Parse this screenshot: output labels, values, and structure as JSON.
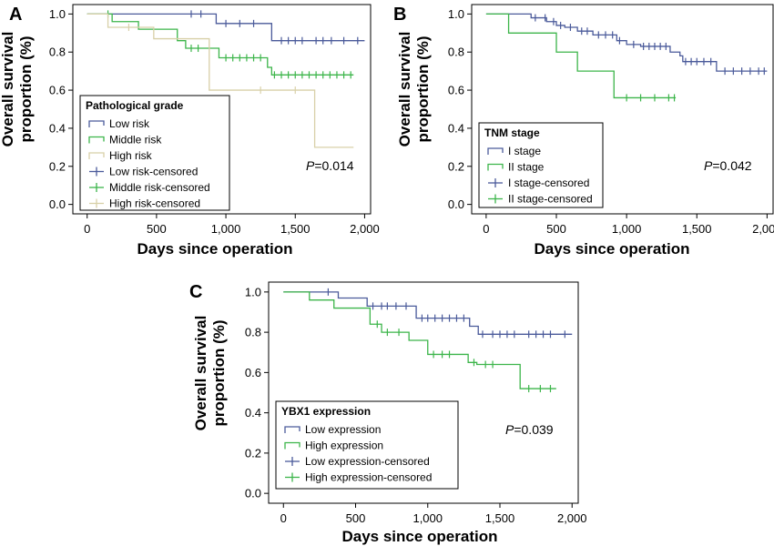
{
  "colors": {
    "low": "#4a5a9a",
    "middle": "#3cb54a",
    "high": "#d8d0a8",
    "frame": "#000000"
  },
  "chart_data": [
    {
      "id": "A",
      "type": "line",
      "panel_label": "A",
      "xlabel": "Days since operation",
      "ylabel_lines": [
        "Overall survival",
        "proportion (%)"
      ],
      "xlim": [
        -90,
        2030
      ],
      "ylim": [
        -0.04,
        1.04
      ],
      "xticks": [
        0,
        500,
        1000,
        1500,
        2000
      ],
      "xtick_labels": [
        "0",
        "500",
        "1,000",
        "1,500",
        "2,000"
      ],
      "yticks": [
        0,
        0.2,
        0.4,
        0.6,
        0.8,
        1.0
      ],
      "ytick_labels": [
        "0.0",
        "0.2",
        "0.4",
        "0.6",
        "0.8",
        "1.0"
      ],
      "p_value": "=0.014",
      "legend": {
        "title": "Pathological grade",
        "placement": "bottom-left",
        "items": [
          {
            "label": "Low risk",
            "kind": "step",
            "color_key": "low"
          },
          {
            "label": "Middle risk",
            "kind": "step",
            "color_key": "middle"
          },
          {
            "label": "High risk",
            "kind": "step",
            "color_key": "high"
          },
          {
            "label": "Low risk-censored",
            "kind": "cross",
            "color_key": "low"
          },
          {
            "label": "Middle risk-censored",
            "kind": "cross",
            "color_key": "middle"
          },
          {
            "label": "High risk-censored",
            "kind": "cross",
            "color_key": "high"
          }
        ]
      },
      "series": [
        {
          "name": "Low risk",
          "color_key": "low",
          "steps": [
            [
              0,
              1.0
            ],
            [
              930,
              0.95
            ],
            [
              1330,
              0.86
            ],
            [
              2000,
              0.86
            ]
          ],
          "censored": [
            [
              750,
              1.0
            ],
            [
              820,
              1.0
            ],
            [
              1000,
              0.95
            ],
            [
              1100,
              0.95
            ],
            [
              1200,
              0.95
            ],
            [
              1400,
              0.86
            ],
            [
              1450,
              0.86
            ],
            [
              1500,
              0.86
            ],
            [
              1550,
              0.86
            ],
            [
              1650,
              0.86
            ],
            [
              1700,
              0.86
            ],
            [
              1760,
              0.86
            ],
            [
              1850,
              0.86
            ],
            [
              1950,
              0.86
            ]
          ]
        },
        {
          "name": "Middle risk",
          "color_key": "middle",
          "steps": [
            [
              0,
              1.0
            ],
            [
              180,
              0.96
            ],
            [
              370,
              0.92
            ],
            [
              650,
              0.86
            ],
            [
              710,
              0.82
            ],
            [
              950,
              0.77
            ],
            [
              1300,
              0.72
            ],
            [
              1330,
              0.68
            ],
            [
              1920,
              0.68
            ]
          ],
          "censored": [
            [
              150,
              1.0
            ],
            [
              750,
              0.82
            ],
            [
              800,
              0.82
            ],
            [
              1000,
              0.77
            ],
            [
              1050,
              0.77
            ],
            [
              1100,
              0.77
            ],
            [
              1150,
              0.77
            ],
            [
              1200,
              0.77
            ],
            [
              1250,
              0.77
            ],
            [
              1350,
              0.68
            ],
            [
              1400,
              0.68
            ],
            [
              1450,
              0.68
            ],
            [
              1500,
              0.68
            ],
            [
              1550,
              0.68
            ],
            [
              1600,
              0.68
            ],
            [
              1650,
              0.68
            ],
            [
              1700,
              0.68
            ],
            [
              1750,
              0.68
            ],
            [
              1800,
              0.68
            ],
            [
              1850,
              0.68
            ],
            [
              1900,
              0.68
            ]
          ]
        },
        {
          "name": "High risk",
          "color_key": "high",
          "steps": [
            [
              0,
              1.0
            ],
            [
              150,
              0.93
            ],
            [
              480,
              0.87
            ],
            [
              880,
              0.6
            ],
            [
              1640,
              0.3
            ],
            [
              1920,
              0.3
            ]
          ],
          "censored": [
            [
              300,
              0.93
            ],
            [
              1250,
              0.6
            ],
            [
              1500,
              0.6
            ]
          ]
        }
      ]
    },
    {
      "id": "B",
      "type": "line",
      "panel_label": "B",
      "xlabel": "Days since operation",
      "ylabel_lines": [
        "Overall survival",
        "proportion (%)"
      ],
      "xlim": [
        -90,
        2030
      ],
      "ylim": [
        -0.04,
        1.04
      ],
      "xticks": [
        0,
        500,
        1000,
        1500,
        2000
      ],
      "xtick_labels": [
        "0",
        "500",
        "1,000",
        "1,500",
        "2,000"
      ],
      "yticks": [
        0,
        0.2,
        0.4,
        0.6,
        0.8,
        1.0
      ],
      "ytick_labels": [
        "0.0",
        "0.2",
        "0.4",
        "0.6",
        "0.8",
        "1.0"
      ],
      "p_value": "=0.042",
      "legend": {
        "title": "TNM stage",
        "placement": "bottom-left",
        "items": [
          {
            "label": "I stage",
            "kind": "step",
            "color_key": "low"
          },
          {
            "label": "II stage",
            "kind": "step",
            "color_key": "middle"
          },
          {
            "label": "I stage-censored",
            "kind": "cross",
            "color_key": "low"
          },
          {
            "label": "II stage-censored",
            "kind": "cross",
            "color_key": "middle"
          }
        ]
      },
      "series": [
        {
          "name": "I stage",
          "color_key": "low",
          "steps": [
            [
              0,
              1.0
            ],
            [
              320,
              0.98
            ],
            [
              430,
              0.96
            ],
            [
              500,
              0.94
            ],
            [
              560,
              0.93
            ],
            [
              650,
              0.91
            ],
            [
              760,
              0.89
            ],
            [
              930,
              0.86
            ],
            [
              1000,
              0.84
            ],
            [
              1100,
              0.83
            ],
            [
              1310,
              0.8
            ],
            [
              1380,
              0.78
            ],
            [
              1400,
              0.75
            ],
            [
              1640,
              0.7
            ],
            [
              2000,
              0.7
            ]
          ],
          "censored": [
            [
              350,
              0.98
            ],
            [
              420,
              0.98
            ],
            [
              480,
              0.96
            ],
            [
              530,
              0.94
            ],
            [
              600,
              0.93
            ],
            [
              680,
              0.91
            ],
            [
              720,
              0.91
            ],
            [
              800,
              0.89
            ],
            [
              850,
              0.89
            ],
            [
              900,
              0.89
            ],
            [
              950,
              0.86
            ],
            [
              1050,
              0.84
            ],
            [
              1120,
              0.83
            ],
            [
              1160,
              0.83
            ],
            [
              1200,
              0.83
            ],
            [
              1240,
              0.83
            ],
            [
              1280,
              0.83
            ],
            [
              1420,
              0.75
            ],
            [
              1460,
              0.75
            ],
            [
              1500,
              0.75
            ],
            [
              1550,
              0.75
            ],
            [
              1600,
              0.75
            ],
            [
              1700,
              0.7
            ],
            [
              1760,
              0.7
            ],
            [
              1820,
              0.7
            ],
            [
              1880,
              0.7
            ],
            [
              1940,
              0.7
            ],
            [
              1980,
              0.7
            ]
          ]
        },
        {
          "name": "II stage",
          "color_key": "middle",
          "steps": [
            [
              0,
              1.0
            ],
            [
              160,
              0.9
            ],
            [
              500,
              0.8
            ],
            [
              650,
              0.7
            ],
            [
              910,
              0.56
            ],
            [
              1350,
              0.56
            ]
          ],
          "censored": [
            [
              1000,
              0.56
            ],
            [
              1100,
              0.56
            ],
            [
              1200,
              0.56
            ],
            [
              1300,
              0.56
            ],
            [
              1340,
              0.56
            ]
          ]
        }
      ]
    },
    {
      "id": "C",
      "type": "line",
      "panel_label": "C",
      "xlabel": "Days since operation",
      "ylabel_lines": [
        "Overall survival",
        "proportion (%)"
      ],
      "xlim": [
        -90,
        2030
      ],
      "ylim": [
        -0.04,
        1.04
      ],
      "xticks": [
        0,
        500,
        1000,
        1500,
        2000
      ],
      "xtick_labels": [
        "0",
        "500",
        "1,000",
        "1,500",
        "2,000"
      ],
      "yticks": [
        0,
        0.2,
        0.4,
        0.6,
        0.8,
        1.0
      ],
      "ytick_labels": [
        "0.0",
        "0.2",
        "0.4",
        "0.6",
        "0.8",
        "1.0"
      ],
      "p_value": "=0.039",
      "legend": {
        "title": "YBX1 expression",
        "placement": "bottom-left",
        "items": [
          {
            "label": "Low expression",
            "kind": "step",
            "color_key": "low"
          },
          {
            "label": "High expression",
            "kind": "step",
            "color_key": "middle"
          },
          {
            "label": "Low expression-censored",
            "kind": "cross",
            "color_key": "low"
          },
          {
            "label": "High expression-censored",
            "kind": "cross",
            "color_key": "middle"
          }
        ]
      },
      "series": [
        {
          "name": "Low expression",
          "color_key": "low",
          "steps": [
            [
              0,
              1.0
            ],
            [
              380,
              0.97
            ],
            [
              580,
              0.93
            ],
            [
              920,
              0.87
            ],
            [
              1290,
              0.83
            ],
            [
              1350,
              0.79
            ],
            [
              2000,
              0.79
            ]
          ],
          "censored": [
            [
              310,
              1.0
            ],
            [
              620,
              0.93
            ],
            [
              680,
              0.93
            ],
            [
              720,
              0.93
            ],
            [
              780,
              0.93
            ],
            [
              850,
              0.93
            ],
            [
              960,
              0.87
            ],
            [
              1000,
              0.87
            ],
            [
              1050,
              0.87
            ],
            [
              1100,
              0.87
            ],
            [
              1150,
              0.87
            ],
            [
              1200,
              0.87
            ],
            [
              1250,
              0.87
            ],
            [
              1380,
              0.79
            ],
            [
              1450,
              0.79
            ],
            [
              1500,
              0.79
            ],
            [
              1550,
              0.79
            ],
            [
              1600,
              0.79
            ],
            [
              1700,
              0.79
            ],
            [
              1750,
              0.79
            ],
            [
              1800,
              0.79
            ],
            [
              1850,
              0.79
            ],
            [
              1950,
              0.79
            ]
          ]
        },
        {
          "name": "High expression",
          "color_key": "middle",
          "steps": [
            [
              0,
              1.0
            ],
            [
              180,
              0.96
            ],
            [
              350,
              0.92
            ],
            [
              600,
              0.84
            ],
            [
              680,
              0.8
            ],
            [
              870,
              0.76
            ],
            [
              1000,
              0.69
            ],
            [
              1280,
              0.65
            ],
            [
              1340,
              0.64
            ],
            [
              1640,
              0.52
            ],
            [
              1890,
              0.52
            ]
          ],
          "censored": [
            [
              650,
              0.84
            ],
            [
              720,
              0.8
            ],
            [
              800,
              0.8
            ],
            [
              1040,
              0.69
            ],
            [
              1100,
              0.69
            ],
            [
              1150,
              0.69
            ],
            [
              1320,
              0.65
            ],
            [
              1400,
              0.64
            ],
            [
              1450,
              0.64
            ],
            [
              1700,
              0.52
            ],
            [
              1780,
              0.52
            ],
            [
              1850,
              0.52
            ]
          ]
        }
      ]
    }
  ]
}
